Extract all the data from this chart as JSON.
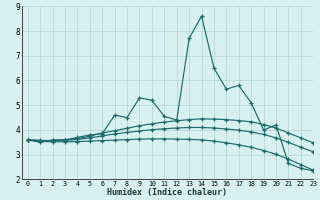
{
  "xlabel": "Humidex (Indice chaleur)",
  "x": [
    0,
    1,
    2,
    3,
    4,
    5,
    6,
    7,
    8,
    9,
    10,
    11,
    12,
    13,
    14,
    15,
    16,
    17,
    18,
    19,
    20,
    21,
    22,
    23
  ],
  "line1": [
    3.6,
    3.5,
    3.6,
    3.6,
    3.7,
    3.8,
    3.85,
    4.6,
    4.5,
    5.3,
    5.2,
    4.55,
    4.4,
    7.7,
    8.6,
    6.5,
    5.65,
    5.8,
    5.1,
    4.0,
    4.2,
    2.65,
    2.45,
    2.35
  ],
  "line2": [
    3.6,
    3.58,
    3.57,
    3.6,
    3.65,
    3.75,
    3.88,
    3.97,
    4.07,
    4.17,
    4.25,
    4.32,
    4.37,
    4.42,
    4.45,
    4.44,
    4.42,
    4.38,
    4.33,
    4.22,
    4.08,
    3.88,
    3.68,
    3.48
  ],
  "line3": [
    3.6,
    3.57,
    3.56,
    3.58,
    3.62,
    3.68,
    3.76,
    3.84,
    3.9,
    3.96,
    4.01,
    4.05,
    4.08,
    4.1,
    4.1,
    4.08,
    4.04,
    3.99,
    3.92,
    3.82,
    3.68,
    3.5,
    3.3,
    3.12
  ],
  "line4": [
    3.6,
    3.54,
    3.52,
    3.52,
    3.53,
    3.55,
    3.57,
    3.59,
    3.61,
    3.63,
    3.64,
    3.64,
    3.63,
    3.62,
    3.6,
    3.55,
    3.48,
    3.4,
    3.3,
    3.17,
    3.02,
    2.82,
    2.6,
    2.38
  ],
  "line_color": "#1a6b6b",
  "bg_color": "#d8f0f0",
  "grid_color": "#b8d8d8",
  "ylim": [
    2,
    9
  ],
  "xlim": [
    -0.5,
    23
  ],
  "yticks": [
    2,
    3,
    4,
    5,
    6,
    7,
    8,
    9
  ],
  "xticks": [
    0,
    1,
    2,
    3,
    4,
    5,
    6,
    7,
    8,
    9,
    10,
    11,
    12,
    13,
    14,
    15,
    16,
    17,
    18,
    19,
    20,
    21,
    22,
    23
  ]
}
